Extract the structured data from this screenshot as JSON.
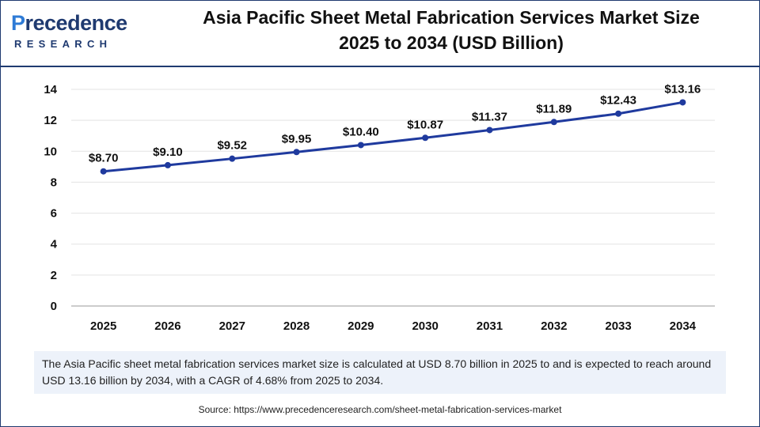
{
  "brand": {
    "logo_top_first": "P",
    "logo_top_rest": "recedence",
    "logo_bottom": "RESEARCH",
    "primary_color": "#1f3a70",
    "accent_color": "#2e7bd6"
  },
  "header": {
    "title_line1": "Asia Pacific Sheet Metal Fabrication Services Market Size",
    "title_line2": "2025 to 2034 (USD Billion)"
  },
  "chart_data": {
    "type": "line",
    "categories": [
      "2025",
      "2026",
      "2027",
      "2028",
      "2029",
      "2030",
      "2031",
      "2032",
      "2033",
      "2034"
    ],
    "series": [
      {
        "values": [
          8.7,
          9.1,
          9.52,
          9.95,
          10.4,
          10.87,
          11.37,
          11.89,
          12.43,
          13.16
        ],
        "labels": [
          "$8.70",
          "$9.10",
          "$9.52",
          "$9.95",
          "$10.40",
          "$10.87",
          "$11.37",
          "$11.89",
          "$12.43",
          "$13.16"
        ],
        "color": "#1f3a9e"
      }
    ],
    "yticks": [
      0,
      2,
      4,
      6,
      8,
      10,
      12,
      14
    ],
    "ylim": [
      0,
      14
    ],
    "xlabel": "",
    "ylabel": "",
    "grid": true
  },
  "note": {
    "text": "The Asia Pacific sheet metal fabrication services market size is calculated at USD 8.70 billion in 2025 to and is expected to reach around USD 13.16 billion by 2034, with a CAGR of 4.68% from 2025 to 2034."
  },
  "source": {
    "text": "Source: https://www.precedenceresearch.com/sheet-metal-fabrication-services-market"
  }
}
